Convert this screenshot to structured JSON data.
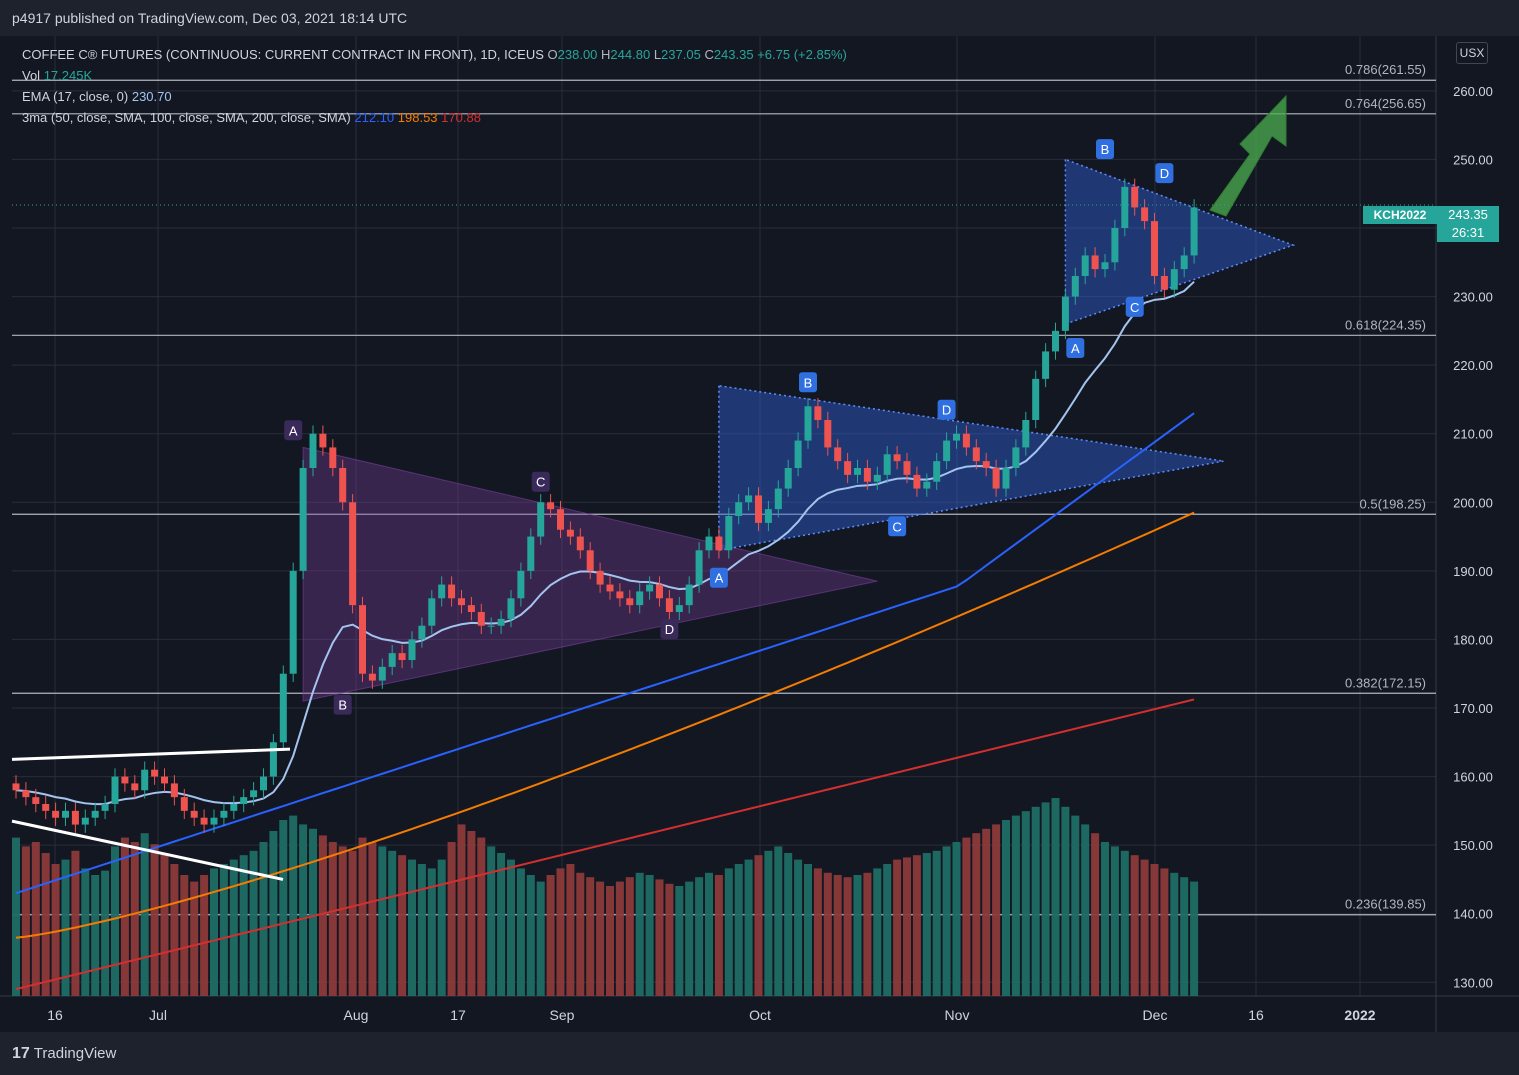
{
  "header": {
    "publisher": "p4917 published on TradingView.com, Dec 03, 2021 18:14 UTC"
  },
  "legend": {
    "symbol": "COFFEE C® FUTURES (CONTINUOUS: CURRENT CONTRACT IN FRONT), 1D, ICEUS",
    "o_label": "O",
    "o": "238.00",
    "h_label": "H",
    "h": "244.80",
    "l_label": "L",
    "l": "237.05",
    "c_label": "C",
    "c": "243.35",
    "change": "+6.75 (+2.85%)",
    "vol_label": "Vol",
    "vol": "17.245K",
    "ema_label": "EMA (17, close, 0)",
    "ema": "230.70",
    "ma_label": "3ma (50, close, SMA, 100, close, SMA, 200, close, SMA)",
    "ma50": "212.10",
    "ma100": "198.53",
    "ma200": "170.88"
  },
  "currency": "USX",
  "price_badge": {
    "symbol": "KCH2022",
    "price": "243.35",
    "countdown": "26:31"
  },
  "footer": {
    "brand": "TradingView"
  },
  "colors": {
    "up": "#26a69a",
    "down": "#ef5350",
    "ema": "#a4c4f0",
    "ma50": "#2962ff",
    "ma100": "#f57c00",
    "ma200": "#d32f2f",
    "purple": "#7b3fa0",
    "blue_wedge": "#2f5fd6"
  },
  "chart_data": {
    "type": "candlestick",
    "ylim": [
      128,
      268
    ],
    "y_ticks": [
      "130.00",
      "140.00",
      "150.00",
      "160.00",
      "170.00",
      "180.00",
      "190.00",
      "200.00",
      "210.00",
      "220.00",
      "230.00",
      "240.00",
      "250.00",
      "260.00"
    ],
    "x_ticks": [
      "16",
      "Jul",
      "Aug",
      "17",
      "Sep",
      "Oct",
      "Nov",
      "Dec",
      "16",
      "2022"
    ],
    "fib_levels": [
      {
        "label": "0.786(261.55)",
        "value": 261.55
      },
      {
        "label": "0.764(256.65)",
        "value": 256.65
      },
      {
        "label": "0.618(224.35)",
        "value": 224.35
      },
      {
        "label": "0.5(198.25)",
        "value": 198.25
      },
      {
        "label": "0.382(172.15)",
        "value": 172.15
      },
      {
        "label": "0.236(139.85)",
        "value": 139.85
      }
    ],
    "pattern_labels": [
      {
        "text": "A",
        "group": "purple",
        "index": 28,
        "value": 210.5
      },
      {
        "text": "B",
        "group": "purple",
        "index": 33,
        "value": 170.5
      },
      {
        "text": "C",
        "group": "purple",
        "index": 53,
        "value": 203.0
      },
      {
        "text": "D",
        "group": "purple",
        "index": 66,
        "value": 181.5
      },
      {
        "text": "A",
        "group": "blue",
        "index": 71,
        "value": 189.0
      },
      {
        "text": "B",
        "group": "blue",
        "index": 80,
        "value": 217.5
      },
      {
        "text": "C",
        "group": "blue",
        "index": 89,
        "value": 196.5
      },
      {
        "text": "D",
        "group": "blue",
        "index": 94,
        "value": 213.5
      },
      {
        "text": "A",
        "group": "blue2",
        "index": 107,
        "value": 222.5
      },
      {
        "text": "B",
        "group": "blue2",
        "index": 110,
        "value": 251.5
      },
      {
        "text": "C",
        "group": "blue2",
        "index": 113,
        "value": 228.5
      },
      {
        "text": "D",
        "group": "blue2",
        "index": 116,
        "value": 248.0
      }
    ],
    "candles_close": [
      158,
      157,
      156,
      155,
      154,
      155,
      153,
      154,
      155,
      156,
      160,
      159,
      158,
      161,
      160,
      159,
      157,
      155,
      154,
      153,
      154,
      155,
      156,
      157,
      158,
      160,
      165,
      175,
      190,
      205,
      210,
      208,
      205,
      200,
      185,
      175,
      174,
      176,
      178,
      177,
      180,
      182,
      186,
      188,
      186,
      185,
      184,
      182,
      182,
      183,
      186,
      190,
      195,
      200,
      199,
      196,
      195,
      193,
      190,
      188,
      187,
      186,
      185,
      187,
      188,
      186,
      184,
      185,
      188,
      193,
      195,
      193,
      198,
      200,
      201,
      197,
      199,
      202,
      205,
      209,
      214,
      212,
      208,
      206,
      204,
      205,
      203,
      204,
      207,
      206,
      204,
      202,
      203,
      206,
      209,
      210,
      208,
      206,
      205,
      202,
      205,
      208,
      212,
      218,
      222,
      225,
      230,
      233,
      236,
      234,
      235,
      240,
      246,
      243,
      241,
      233,
      231,
      234,
      236,
      243
    ],
    "volume": [
      72,
      68,
      70,
      65,
      60,
      62,
      66,
      58,
      55,
      57,
      68,
      72,
      70,
      74,
      69,
      65,
      60,
      55,
      52,
      55,
      58,
      60,
      62,
      64,
      66,
      70,
      75,
      80,
      82,
      78,
      76,
      73,
      70,
      68,
      66,
      72,
      70,
      68,
      66,
      64,
      62,
      60,
      58,
      62,
      70,
      78,
      75,
      72,
      68,
      65,
      62,
      58,
      55,
      52,
      55,
      58,
      60,
      56,
      54,
      52,
      50,
      52,
      54,
      56,
      55,
      53,
      51,
      50,
      52,
      54,
      56,
      55,
      58,
      60,
      62,
      64,
      66,
      68,
      65,
      62,
      60,
      58,
      56,
      55,
      54,
      55,
      56,
      58,
      60,
      62,
      63,
      64,
      65,
      66,
      68,
      70,
      72,
      74,
      76,
      78,
      80,
      82,
      84,
      86,
      88,
      90,
      86,
      82,
      78,
      74,
      70,
      68,
      66,
      64,
      62,
      60,
      58,
      56,
      54,
      52
    ]
  }
}
